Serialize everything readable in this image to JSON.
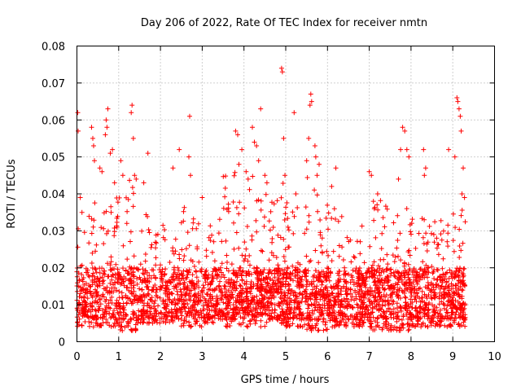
{
  "chart_data": {
    "type": "scatter",
    "title": "Day 206 of 2022, Rate Of TEC Index for receiver nmtn",
    "xlabel": "GPS time / hours",
    "ylabel": "ROTI / TECUs",
    "xlim": [
      0,
      10
    ],
    "ylim": [
      0,
      0.08
    ],
    "x_ticks": [
      "0",
      "1",
      "2",
      "3",
      "4",
      "5",
      "6",
      "7",
      "8",
      "9",
      "10"
    ],
    "y_ticks": [
      "0",
      "0.01",
      "0.02",
      "0.03",
      "0.04",
      "0.05",
      "0.06",
      "0.07",
      "0.08"
    ],
    "grid": true,
    "marker": "plus",
    "color": "#ff0000",
    "x_extent_hours": [
      0,
      9.3
    ],
    "series": [
      {
        "points": [
          [
            0.02,
            0.062
          ],
          [
            0.03,
            0.057
          ],
          [
            0.08,
            0.039
          ],
          [
            0.12,
            0.035
          ],
          [
            0.35,
            0.058
          ],
          [
            0.38,
            0.055
          ],
          [
            0.4,
            0.053
          ],
          [
            0.42,
            0.049
          ],
          [
            0.55,
            0.047
          ],
          [
            0.6,
            0.046
          ],
          [
            0.7,
            0.06
          ],
          [
            0.72,
            0.058
          ],
          [
            0.74,
            0.063
          ],
          [
            0.68,
            0.056
          ],
          [
            0.8,
            0.051
          ],
          [
            0.85,
            0.052
          ],
          [
            0.9,
            0.043
          ],
          [
            1.05,
            0.049
          ],
          [
            1.1,
            0.045
          ],
          [
            1.3,
            0.062
          ],
          [
            1.32,
            0.064
          ],
          [
            1.35,
            0.055
          ],
          [
            1.38,
            0.045
          ],
          [
            1.42,
            0.044
          ],
          [
            1.6,
            0.043
          ],
          [
            1.7,
            0.051
          ],
          [
            2.3,
            0.047
          ],
          [
            2.45,
            0.052
          ],
          [
            2.7,
            0.061
          ],
          [
            2.68,
            0.05
          ],
          [
            2.72,
            0.045
          ],
          [
            3.0,
            0.039
          ],
          [
            3.8,
            0.057
          ],
          [
            3.85,
            0.056
          ],
          [
            3.88,
            0.048
          ],
          [
            3.95,
            0.052
          ],
          [
            4.05,
            0.046
          ],
          [
            4.1,
            0.044
          ],
          [
            4.2,
            0.058
          ],
          [
            4.25,
            0.054
          ],
          [
            4.3,
            0.053
          ],
          [
            4.35,
            0.049
          ],
          [
            4.4,
            0.063
          ],
          [
            4.5,
            0.045
          ],
          [
            4.55,
            0.043
          ],
          [
            4.9,
            0.074
          ],
          [
            4.92,
            0.073
          ],
          [
            4.95,
            0.055
          ],
          [
            4.98,
            0.045
          ],
          [
            5.2,
            0.062
          ],
          [
            5.5,
            0.049
          ],
          [
            5.55,
            0.055
          ],
          [
            5.6,
            0.067
          ],
          [
            5.62,
            0.065
          ],
          [
            5.58,
            0.064
          ],
          [
            5.7,
            0.053
          ],
          [
            5.72,
            0.05
          ],
          [
            5.75,
            0.045
          ],
          [
            5.8,
            0.048
          ],
          [
            6.2,
            0.047
          ],
          [
            6.1,
            0.042
          ],
          [
            7.0,
            0.046
          ],
          [
            7.05,
            0.045
          ],
          [
            7.1,
            0.038
          ],
          [
            7.2,
            0.04
          ],
          [
            7.75,
            0.052
          ],
          [
            7.8,
            0.058
          ],
          [
            7.85,
            0.057
          ],
          [
            7.9,
            0.052
          ],
          [
            7.95,
            0.05
          ],
          [
            7.7,
            0.044
          ],
          [
            8.3,
            0.052
          ],
          [
            8.35,
            0.047
          ],
          [
            8.32,
            0.045
          ],
          [
            8.9,
            0.052
          ],
          [
            9.05,
            0.05
          ],
          [
            9.1,
            0.066
          ],
          [
            9.12,
            0.065
          ],
          [
            9.15,
            0.063
          ],
          [
            9.18,
            0.061
          ],
          [
            9.2,
            0.057
          ],
          [
            9.25,
            0.047
          ],
          [
            9.22,
            0.04
          ],
          [
            9.28,
            0.039
          ]
        ],
        "bulk_ranges": [
          {
            "x": [
              0.0,
              0.4
            ],
            "y": [
              0.004,
              0.035
            ],
            "n": 140
          },
          {
            "x": [
              0.4,
              1.0
            ],
            "y": [
              0.004,
              0.04
            ],
            "n": 190
          },
          {
            "x": [
              1.0,
              1.5
            ],
            "y": [
              0.003,
              0.045
            ],
            "n": 160
          },
          {
            "x": [
              1.5,
              2.0
            ],
            "y": [
              0.005,
              0.035
            ],
            "n": 140
          },
          {
            "x": [
              2.0,
              2.5
            ],
            "y": [
              0.005,
              0.032
            ],
            "n": 160
          },
          {
            "x": [
              2.5,
              3.0
            ],
            "y": [
              0.004,
              0.037
            ],
            "n": 170
          },
          {
            "x": [
              3.0,
              3.5
            ],
            "y": [
              0.005,
              0.035
            ],
            "n": 170
          },
          {
            "x": [
              3.5,
              4.0
            ],
            "y": [
              0.004,
              0.046
            ],
            "n": 190
          },
          {
            "x": [
              4.0,
              4.5
            ],
            "y": [
              0.004,
              0.045
            ],
            "n": 200
          },
          {
            "x": [
              4.5,
              5.0
            ],
            "y": [
              0.004,
              0.045
            ],
            "n": 200
          },
          {
            "x": [
              5.0,
              5.5
            ],
            "y": [
              0.004,
              0.04
            ],
            "n": 190
          },
          {
            "x": [
              5.5,
              6.0
            ],
            "y": [
              0.003,
              0.045
            ],
            "n": 190
          },
          {
            "x": [
              6.0,
              6.5
            ],
            "y": [
              0.004,
              0.036
            ],
            "n": 180
          },
          {
            "x": [
              6.5,
              7.0
            ],
            "y": [
              0.004,
              0.033
            ],
            "n": 170
          },
          {
            "x": [
              7.0,
              7.5
            ],
            "y": [
              0.003,
              0.04
            ],
            "n": 190
          },
          {
            "x": [
              7.5,
              8.0
            ],
            "y": [
              0.003,
              0.037
            ],
            "n": 180
          },
          {
            "x": [
              8.0,
              8.5
            ],
            "y": [
              0.004,
              0.034
            ],
            "n": 180
          },
          {
            "x": [
              8.5,
              9.0
            ],
            "y": [
              0.004,
              0.033
            ],
            "n": 170
          },
          {
            "x": [
              9.0,
              9.3
            ],
            "y": [
              0.004,
              0.036
            ],
            "n": 130
          }
        ],
        "dense_band": {
          "y": [
            0.006,
            0.02
          ]
        }
      }
    ]
  }
}
